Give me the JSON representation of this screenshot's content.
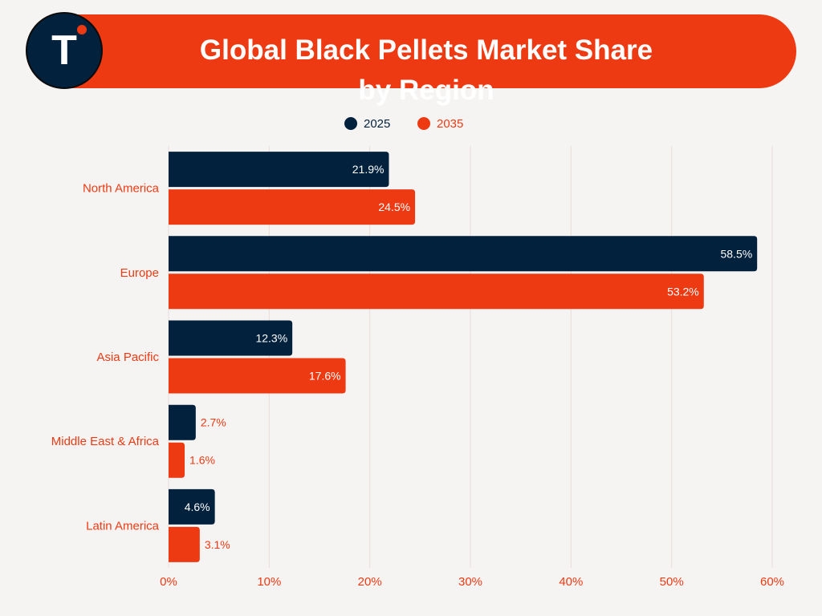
{
  "header": {
    "title": "Global Black Pellets Market Share\nby Region",
    "logo_letter": "T",
    "banner_color": "#ee3a12",
    "logo_color": "#02213d",
    "logo_dot_color": "#ee3a12"
  },
  "chart_data": {
    "type": "bar",
    "orientation": "horizontal",
    "title": "Global Black Pellets Market Share by Region",
    "categories": [
      "North America",
      "Europe",
      "Asia Pacific",
      "Middle East & Africa",
      "Latin America"
    ],
    "series": [
      {
        "name": "2025",
        "color": "#02213d",
        "values": [
          21.9,
          58.5,
          12.3,
          2.7,
          4.6
        ],
        "labels": [
          "21.9%",
          "58.5%",
          "12.3%",
          "2.7%",
          "4.6%"
        ]
      },
      {
        "name": "2035",
        "color": "#ee3a12",
        "values": [
          24.5,
          53.2,
          17.6,
          1.6,
          3.1
        ],
        "labels": [
          "24.5%",
          "53.2%",
          "17.6%",
          "1.6%",
          "3.1%"
        ]
      }
    ],
    "xlim": [
      0,
      60
    ],
    "xticks": [
      0,
      10,
      20,
      30,
      40,
      50,
      60
    ],
    "xtick_labels": [
      "0%",
      "10%",
      "20%",
      "30%",
      "40%",
      "50%",
      "60%"
    ],
    "grid": "vertical",
    "legend_position": "top-center",
    "label_color": "#ee3a12"
  }
}
